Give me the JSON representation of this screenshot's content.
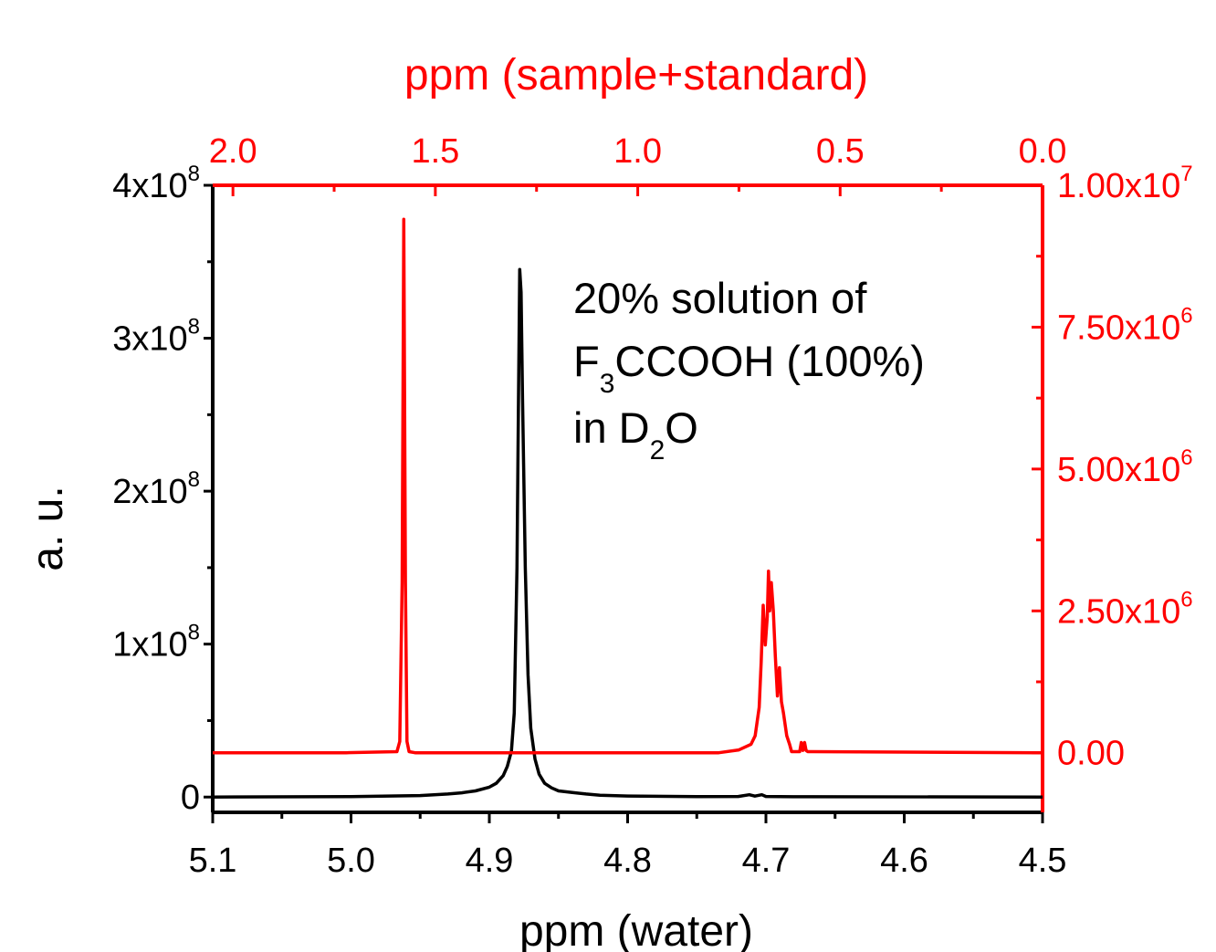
{
  "chart_data": {
    "type": "line",
    "title": "",
    "xlabel_bottom": "ppm (water)",
    "xlabel_top": "ppm (sample+standard)",
    "ylabel_left": "a. u.",
    "annotation": {
      "line1": "20% solution of",
      "line2_pre": "F",
      "line2_sub": "3",
      "line2_post": "CCOOH (100%)",
      "line3_pre": "in D",
      "line3_sub": "2",
      "line3_post": "O"
    },
    "x_bottom": {
      "range": [
        5.1,
        4.5
      ],
      "reversed": true,
      "ticks": [
        "5.1",
        "5.0",
        "4.9",
        "4.8",
        "4.7",
        "4.6",
        "4.5"
      ],
      "tick_values": [
        5.1,
        5.0,
        4.9,
        4.8,
        4.7,
        4.6,
        4.5
      ]
    },
    "x_top": {
      "range": [
        2.05,
        0.0
      ],
      "reversed": true,
      "ticks": [
        "2.0",
        "1.5",
        "1.0",
        "0.5",
        "0.0"
      ],
      "tick_values": [
        2.0,
        1.5,
        1.0,
        0.5,
        0.0
      ],
      "color": "#ff0000"
    },
    "y_left": {
      "range": [
        -10000000.0,
        400000000.0
      ],
      "ticks": [
        {
          "v": 0,
          "base": "0"
        },
        {
          "v": 100000000.0,
          "base": "1x10",
          "exp": "8"
        },
        {
          "v": 200000000.0,
          "base": "2x10",
          "exp": "8"
        },
        {
          "v": 300000000.0,
          "base": "3x10",
          "exp": "8"
        },
        {
          "v": 400000000.0,
          "base": "4x10",
          "exp": "8"
        }
      ],
      "color": "#000000"
    },
    "y_right": {
      "range": [
        -1050000.0,
        10000000.0
      ],
      "ticks": [
        {
          "v": 0,
          "base": "0.00"
        },
        {
          "v": 2500000.0,
          "base": "2.50x10",
          "exp": "6"
        },
        {
          "v": 5000000.0,
          "base": "5.00x10",
          "exp": "6"
        },
        {
          "v": 7500000.0,
          "base": "7.50x10",
          "exp": "6"
        },
        {
          "v": 10000000.0,
          "base": "1.00x10",
          "exp": "7"
        }
      ],
      "color": "#ff0000"
    },
    "series": [
      {
        "axis": "bottom-left",
        "color": "#000000",
        "x": [
          5.1,
          5.0,
          4.95,
          4.93,
          4.92,
          4.91,
          4.9,
          4.895,
          4.89,
          4.887,
          4.884,
          4.882,
          4.88,
          4.879,
          4.878,
          4.877,
          4.876,
          4.874,
          4.872,
          4.87,
          4.867,
          4.864,
          4.86,
          4.855,
          4.85,
          4.84,
          4.83,
          4.82,
          4.8,
          4.75,
          4.72,
          4.712,
          4.708,
          4.703,
          4.7,
          4.68,
          4.5
        ],
        "y": [
          0,
          300000.0,
          1000000.0,
          2000000.0,
          2800000.0,
          4000000.0,
          6500000.0,
          9000000.0,
          14000000.0,
          20000000.0,
          30000000.0,
          55000000.0,
          150000000.0,
          250000000.0,
          345000000.0,
          330000000.0,
          260000000.0,
          150000000.0,
          80000000.0,
          45000000.0,
          25000000.0,
          15000000.0,
          9000000.0,
          6000000.0,
          4000000.0,
          3000000.0,
          2000000.0,
          1200000.0,
          700000.0,
          300000.0,
          400000.0,
          1500000.0,
          600000.0,
          1500000.0,
          400000.0,
          200000.0,
          0
        ]
      },
      {
        "axis": "top-right",
        "color": "#ff0000",
        "x": [
          2.05,
          1.72,
          1.595,
          1.588,
          1.582,
          1.578,
          1.574,
          1.57,
          1.565,
          1.55,
          1.2,
          0.8,
          0.75,
          0.72,
          0.71,
          0.7,
          0.695,
          0.69,
          0.685,
          0.68,
          0.677,
          0.674,
          0.67,
          0.665,
          0.66,
          0.655,
          0.65,
          0.645,
          0.64,
          0.632,
          0.625,
          0.62,
          0.6,
          0.596,
          0.592,
          0.588,
          0.584,
          0.58,
          0.0
        ],
        "y": [
          0,
          0,
          20000.0,
          200000.0,
          3000000.0,
          9400000.0,
          3000000.0,
          200000.0,
          20000.0,
          0,
          0,
          0,
          50000.0,
          150000.0,
          300000.0,
          800000.0,
          1600000.0,
          2600000.0,
          1900000.0,
          2400000.0,
          3200000.0,
          2500000.0,
          3000000.0,
          2500000.0,
          1700000.0,
          1000000.0,
          1500000.0,
          900000.0,
          700000.0,
          300000.0,
          150000.0,
          20000.0,
          20000.0,
          180000.0,
          40000.0,
          180000.0,
          40000.0,
          20000.0,
          0
        ]
      }
    ]
  }
}
